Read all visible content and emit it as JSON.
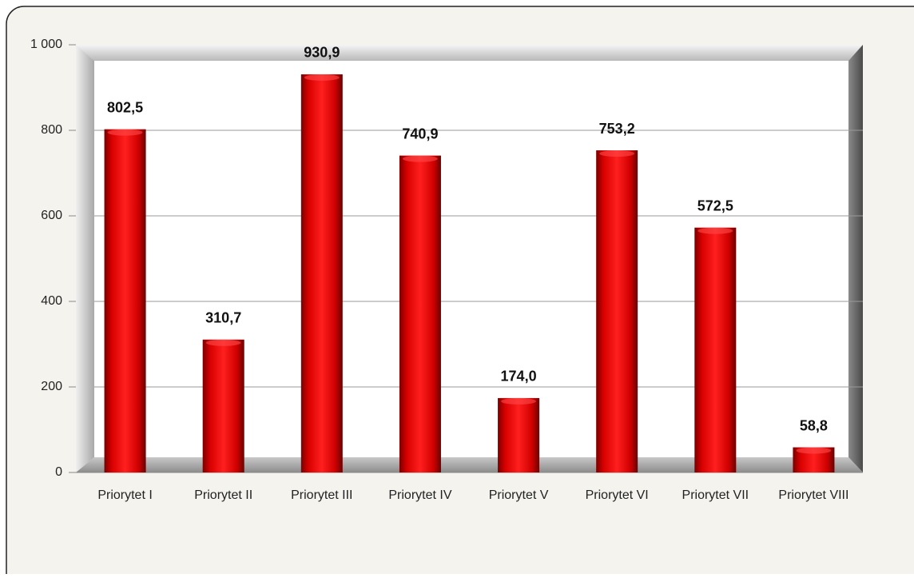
{
  "chart_data": {
    "type": "bar",
    "categories": [
      "Priorytet I",
      "Priorytet II",
      "Priorytet III",
      "Priorytet IV",
      "Priorytet V",
      "Priorytet VI",
      "Priorytet VII",
      "Priorytet VIII"
    ],
    "values": [
      802.5,
      310.7,
      930.9,
      740.9,
      174.0,
      753.2,
      572.5,
      58.8
    ],
    "value_labels": [
      "802,5",
      "310,7",
      "930,9",
      "740,9",
      "174,0",
      "753,2",
      "572,5",
      "58,8"
    ],
    "color": "#e00000",
    "ylim": [
      0,
      1000
    ],
    "yticks": [
      0,
      200,
      400,
      600,
      800,
      {
        "value": 1000,
        "label": "1 000"
      }
    ],
    "grid": true
  }
}
